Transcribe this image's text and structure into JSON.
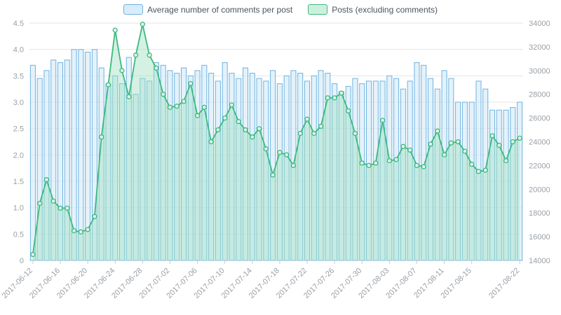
{
  "legend": {
    "comments_label": "Average number of comments per post",
    "posts_label": "Posts (excluding comments)"
  },
  "colors": {
    "bar_border": "#6fb3e0",
    "bar_fill": "#d8ecf9",
    "line": "#3cb97f",
    "area_fill": "#9fe0c2",
    "grid": "#e6e6e6",
    "axis_text": "#9aa0a6",
    "axis_line": "#cccccc"
  },
  "chart_data": {
    "type": "bar",
    "title": "",
    "xlabel": "",
    "ylabel_left": "",
    "ylabel_right": "",
    "legend_position": "top",
    "grid": true,
    "x_label_every": 4,
    "y_left": {
      "min": 0,
      "max": 4.5,
      "step": 0.5
    },
    "y_right": {
      "min": 14000,
      "max": 34000,
      "step": 2000
    },
    "categories": [
      "2017-06-12",
      "2017-06-13",
      "2017-06-14",
      "2017-06-15",
      "2017-06-16",
      "2017-06-17",
      "2017-06-18",
      "2017-06-19",
      "2017-06-20",
      "2017-06-21",
      "2017-06-22",
      "2017-06-23",
      "2017-06-24",
      "2017-06-25",
      "2017-06-26",
      "2017-06-27",
      "2017-06-28",
      "2017-06-29",
      "2017-06-30",
      "2017-07-01",
      "2017-07-02",
      "2017-07-03",
      "2017-07-04",
      "2017-07-05",
      "2017-07-06",
      "2017-07-07",
      "2017-07-08",
      "2017-07-09",
      "2017-07-10",
      "2017-07-11",
      "2017-07-12",
      "2017-07-13",
      "2017-07-14",
      "2017-07-15",
      "2017-07-16",
      "2017-07-17",
      "2017-07-18",
      "2017-07-19",
      "2017-07-20",
      "2017-07-21",
      "2017-07-22",
      "2017-07-23",
      "2017-07-24",
      "2017-07-25",
      "2017-07-26",
      "2017-07-27",
      "2017-07-28",
      "2017-07-29",
      "2017-07-30",
      "2017-07-31",
      "2017-08-01",
      "2017-08-02",
      "2017-08-03",
      "2017-08-04",
      "2017-08-05",
      "2017-08-06",
      "2017-08-07",
      "2017-08-08",
      "2017-08-09",
      "2017-08-10",
      "2017-08-11",
      "2017-08-12",
      "2017-08-13",
      "2017-08-14",
      "2017-08-15",
      "2017-08-16",
      "2017-08-17",
      "2017-08-18",
      "2017-08-19",
      "2017-08-20",
      "2017-08-21",
      "2017-08-22"
    ],
    "series": [
      {
        "name": "Average number of comments per post",
        "type": "bar",
        "axis": "left",
        "color": "#6fb3e0",
        "fill": "#d8ecf9",
        "values": [
          3.7,
          3.45,
          3.6,
          3.8,
          3.75,
          3.8,
          4.0,
          4.0,
          3.95,
          4.0,
          3.65,
          3.35,
          3.5,
          3.35,
          3.85,
          3.15,
          3.45,
          3.4,
          3.75,
          3.7,
          3.6,
          3.55,
          3.65,
          3.5,
          3.6,
          3.7,
          3.55,
          3.4,
          3.75,
          3.55,
          3.45,
          3.65,
          3.55,
          3.45,
          3.4,
          3.6,
          3.35,
          3.5,
          3.6,
          3.55,
          3.4,
          3.5,
          3.6,
          3.55,
          3.35,
          3.2,
          3.3,
          3.45,
          3.35,
          3.4,
          3.4,
          3.4,
          3.5,
          3.45,
          3.25,
          3.4,
          3.75,
          3.7,
          3.45,
          3.25,
          3.6,
          3.45,
          3.0,
          3.0,
          3.0,
          3.4,
          3.25,
          2.85,
          2.85,
          2.85,
          2.9,
          3.0
        ]
      },
      {
        "name": "Posts (excluding comments)",
        "type": "area",
        "axis": "right",
        "color": "#3cb97f",
        "fill": "#9fe0c2",
        "values": [
          14500,
          18800,
          20800,
          19000,
          18400,
          18400,
          16500,
          16400,
          16600,
          17700,
          24400,
          28800,
          33400,
          30000,
          27800,
          31300,
          33900,
          31300,
          30200,
          28000,
          26900,
          27000,
          27400,
          28900,
          26200,
          26900,
          24000,
          25000,
          26000,
          27100,
          25700,
          25000,
          24400,
          25100,
          23400,
          21200,
          23100,
          22900,
          22000,
          24700,
          25900,
          24700,
          25300,
          27700,
          27700,
          28100,
          26600,
          24700,
          22200,
          22000,
          22200,
          25800,
          22400,
          22500,
          23600,
          23300,
          22000,
          21900,
          23800,
          24900,
          22900,
          23900,
          24000,
          23200,
          22100,
          21500,
          21600,
          24500,
          23700,
          22400,
          24000,
          24300
        ]
      }
    ]
  }
}
